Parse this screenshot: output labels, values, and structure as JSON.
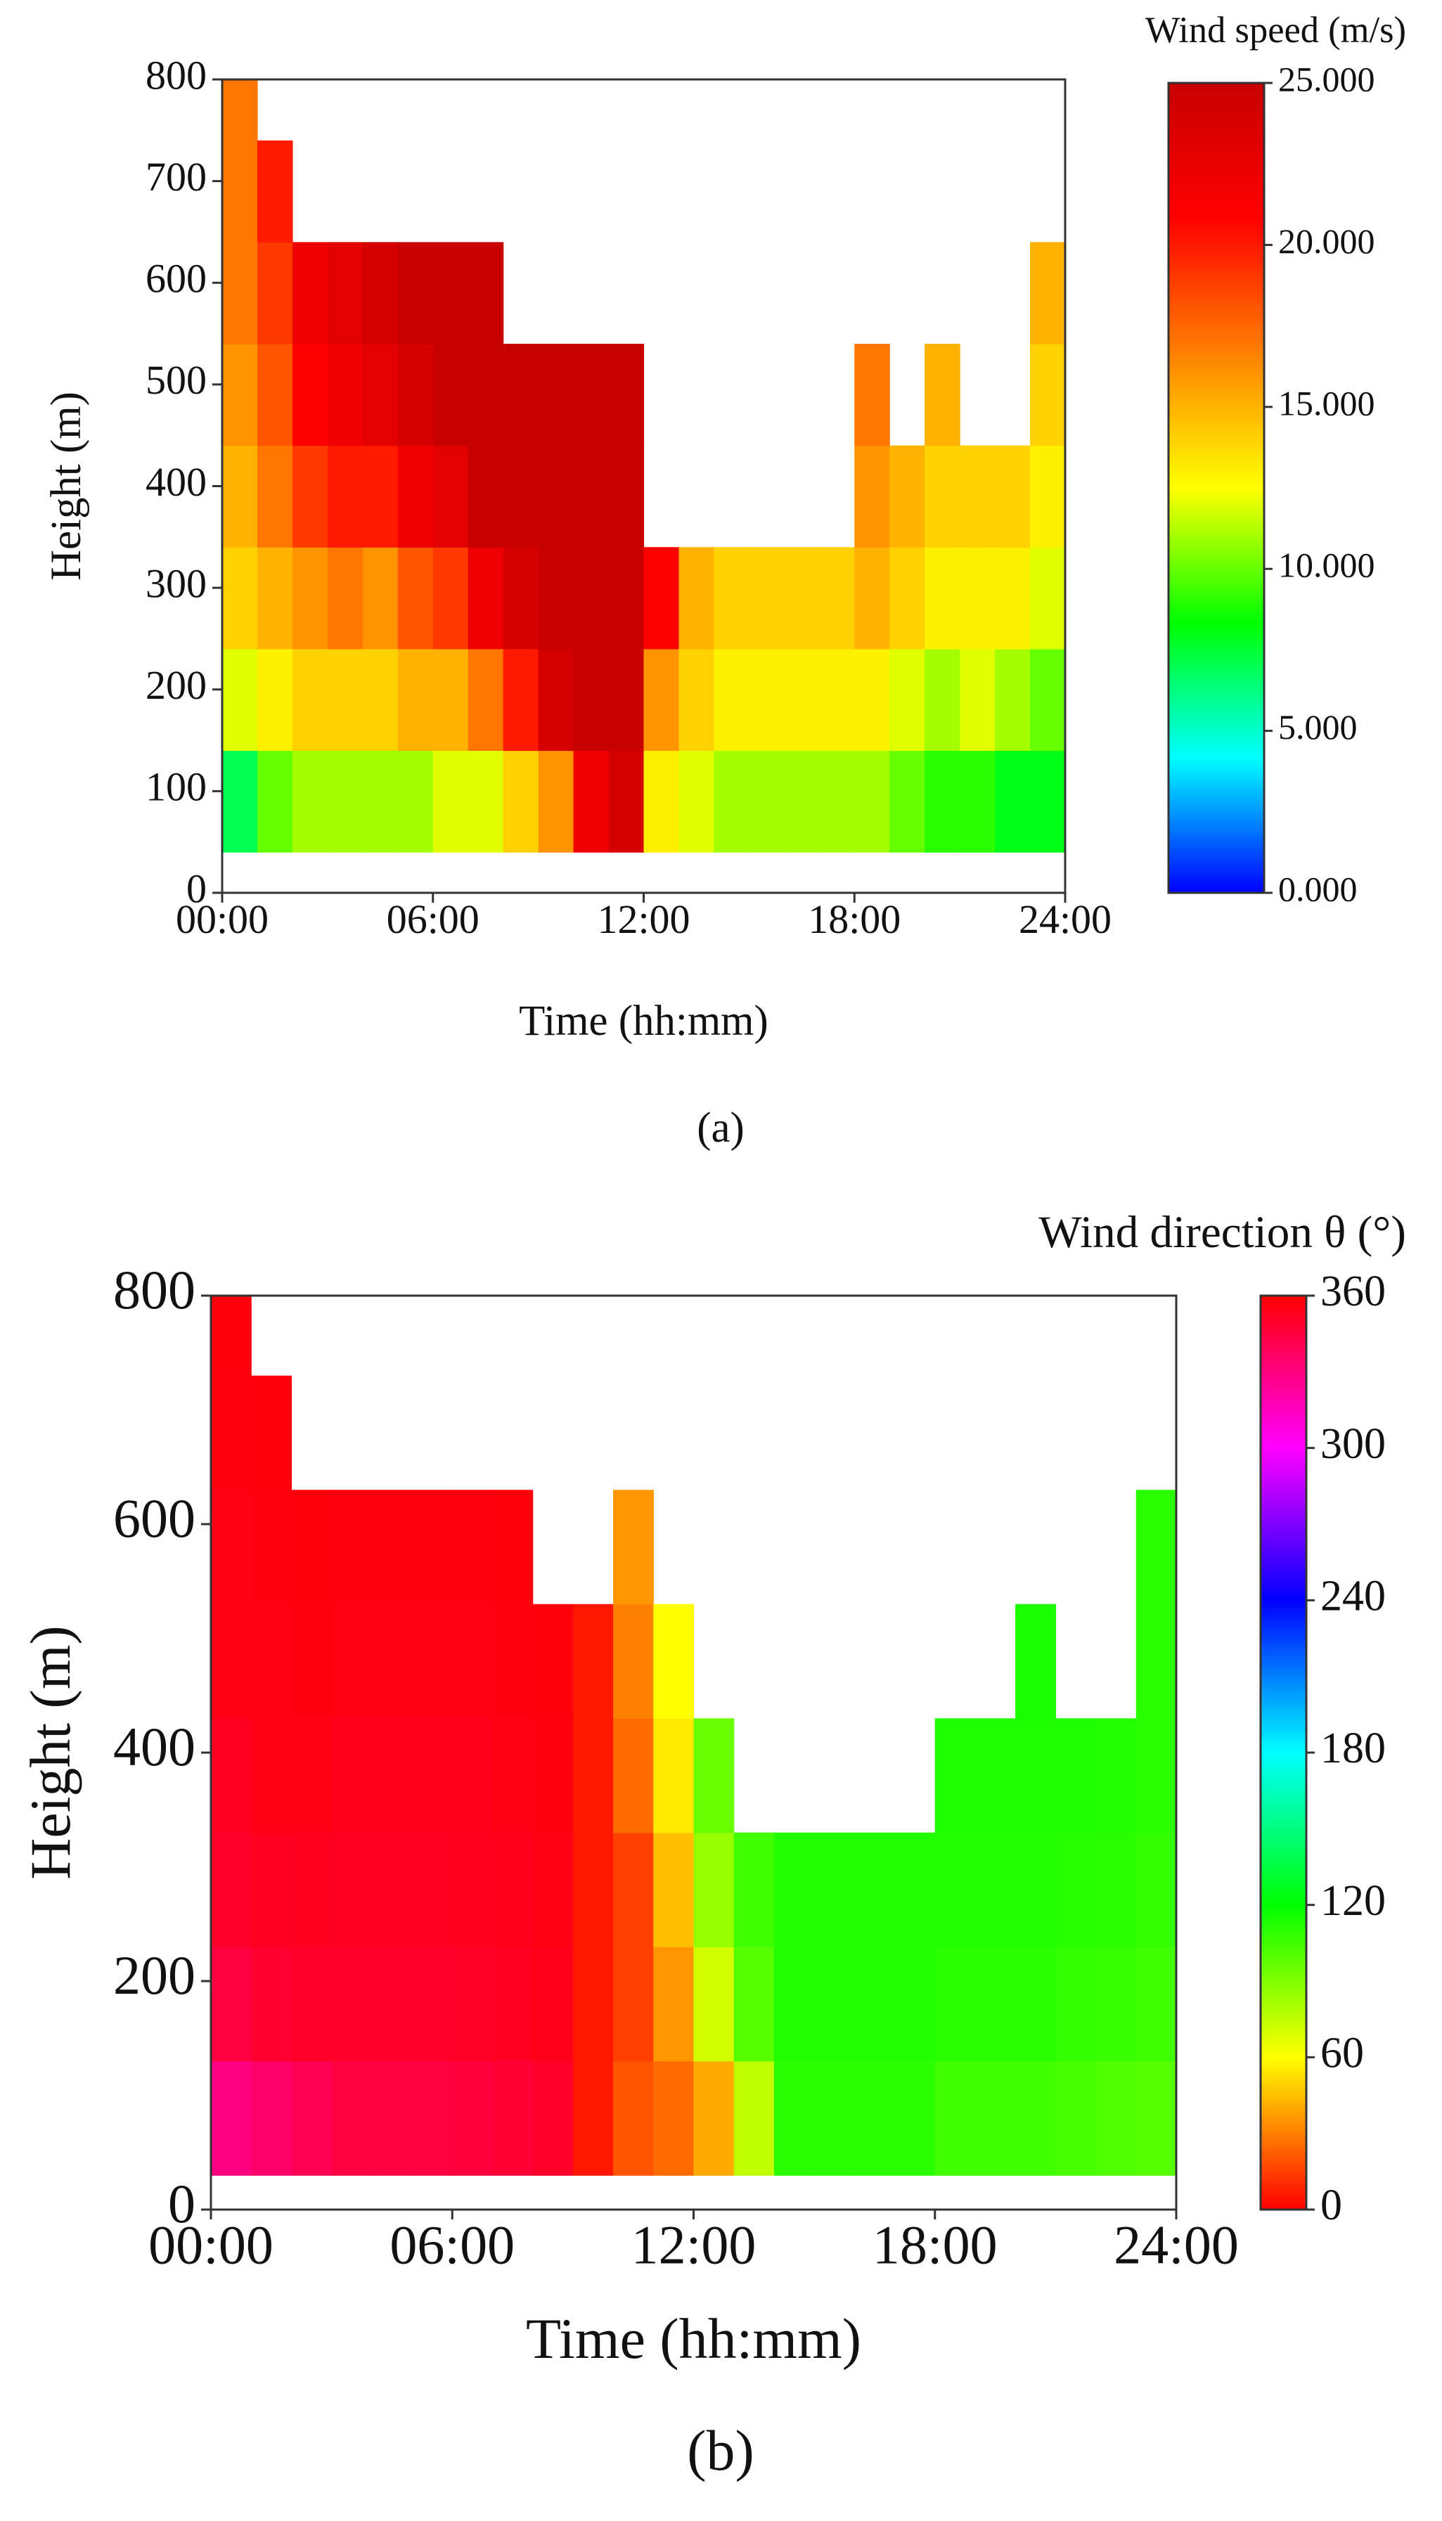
{
  "chart_data": [
    {
      "type": "heatmap",
      "caption": "(a)",
      "xlabel": "Time (hh:mm)",
      "ylabel": "Height (m)",
      "xbins": [
        0,
        1,
        2,
        3,
        4,
        5,
        6,
        7,
        8,
        9,
        10,
        11,
        12,
        13,
        14,
        15,
        16,
        17,
        18,
        19,
        20,
        21,
        22,
        23,
        24
      ],
      "ybins": [
        40,
        140,
        240,
        340,
        440,
        540,
        640,
        740,
        800
      ],
      "values": [
        [
          7,
          12,
          14,
          15,
          16,
          17,
          17,
          17
        ],
        [
          10,
          13,
          15,
          17,
          18,
          19,
          20,
          null
        ],
        [
          11,
          14,
          16,
          19,
          21,
          22,
          null,
          null
        ],
        [
          11,
          14,
          17,
          20,
          22,
          23,
          null,
          null
        ],
        [
          11,
          14,
          16,
          20,
          23,
          24,
          null,
          null
        ],
        [
          11,
          15,
          18,
          22,
          24,
          25,
          null,
          null
        ],
        [
          12,
          15,
          19,
          23,
          25,
          25,
          null,
          null
        ],
        [
          12,
          17,
          22,
          25,
          25,
          25,
          null,
          null
        ],
        [
          14,
          20,
          24,
          25,
          25,
          null,
          null,
          null
        ],
        [
          16,
          24,
          25,
          25,
          25,
          null,
          null,
          null
        ],
        [
          22,
          25,
          25,
          25,
          25,
          null,
          null,
          null
        ],
        [
          24,
          25,
          25,
          25,
          25,
          null,
          null,
          null
        ],
        [
          13,
          16,
          21,
          null,
          null,
          null,
          null,
          null
        ],
        [
          12,
          14,
          15,
          null,
          null,
          null,
          null,
          null
        ],
        [
          11,
          13,
          14,
          null,
          null,
          null,
          null,
          null
        ],
        [
          11,
          13,
          14,
          null,
          null,
          null,
          null,
          null
        ],
        [
          11,
          13,
          14,
          null,
          null,
          null,
          null,
          null
        ],
        [
          11,
          13,
          14,
          null,
          null,
          null,
          null,
          null
        ],
        [
          11,
          13,
          15,
          16,
          17,
          null,
          null,
          null
        ],
        [
          10,
          12,
          14,
          15,
          null,
          null,
          null,
          null
        ],
        [
          9,
          11,
          13,
          14,
          15,
          null,
          null,
          null
        ],
        [
          9,
          12,
          13,
          14,
          null,
          null,
          null,
          null
        ],
        [
          8,
          11,
          13,
          14,
          null,
          null,
          null,
          null
        ],
        [
          8,
          10,
          12,
          13,
          14,
          15,
          null,
          null
        ]
      ],
      "xlim": [
        0,
        24
      ],
      "xticks": [
        {
          "value": 0,
          "label": "00:00"
        },
        {
          "value": 6,
          "label": "06:00"
        },
        {
          "value": 12,
          "label": "12:00"
        },
        {
          "value": 18,
          "label": "18:00"
        },
        {
          "value": 24,
          "label": "24:00"
        }
      ],
      "ylim": [
        0,
        800
      ],
      "yticks": [
        0,
        100,
        200,
        300,
        400,
        500,
        600,
        700,
        800
      ],
      "colorbar": {
        "label": "Wind speed (m/s)",
        "lim": [
          0,
          25
        ],
        "colors": [
          "#0000ff",
          "#00ffff",
          "#00ff00",
          "#ffff00",
          "#ff8000",
          "#ff0000",
          "#c80000"
        ],
        "ticks": [
          {
            "value": 0,
            "label": "0.000"
          },
          {
            "value": 5,
            "label": "5.000"
          },
          {
            "value": 10,
            "label": "10.000"
          },
          {
            "value": 15,
            "label": "15.000"
          },
          {
            "value": 20,
            "label": "20.000"
          },
          {
            "value": 25,
            "label": "25.000"
          }
        ]
      }
    },
    {
      "type": "heatmap",
      "caption": "(b)",
      "xlabel": "Time (hh:mm)",
      "ylabel": "Height (m)",
      "xbins": [
        0,
        1,
        2,
        3,
        4,
        5,
        6,
        7,
        8,
        9,
        10,
        11,
        12,
        13,
        14,
        15,
        16,
        17,
        18,
        19,
        20,
        21,
        22,
        23,
        24
      ],
      "ybins": [
        30,
        130,
        230,
        330,
        430,
        530,
        630,
        730,
        800
      ],
      "values": [
        [
          330,
          345,
          350,
          352,
          355,
          355,
          356,
          357
        ],
        [
          335,
          348,
          352,
          355,
          355,
          356,
          357,
          null
        ],
        [
          340,
          350,
          353,
          355,
          356,
          357,
          null,
          null
        ],
        [
          345,
          350,
          352,
          354,
          355,
          356,
          null,
          null
        ],
        [
          345,
          350,
          352,
          354,
          355,
          356,
          null,
          null
        ],
        [
          345,
          350,
          352,
          354,
          355,
          356,
          null,
          null
        ],
        [
          346,
          351,
          353,
          354,
          355,
          356,
          null,
          null
        ],
        [
          347,
          352,
          354,
          355,
          356,
          357,
          null,
          null
        ],
        [
          350,
          354,
          355,
          356,
          357,
          null,
          null,
          null
        ],
        [
          5,
          5,
          5,
          5,
          5,
          null,
          null,
          null
        ],
        [
          20,
          15,
          15,
          25,
          30,
          35,
          null,
          null
        ],
        [
          25,
          35,
          45,
          55,
          60,
          null,
          null,
          null
        ],
        [
          40,
          70,
          85,
          95,
          null,
          null,
          null,
          null
        ],
        [
          75,
          100,
          105,
          null,
          null,
          null,
          null,
          null
        ],
        [
          110,
          112,
          112,
          null,
          null,
          null,
          null,
          null
        ],
        [
          110,
          112,
          112,
          null,
          null,
          null,
          null,
          null
        ],
        [
          110,
          112,
          112,
          null,
          null,
          null,
          null,
          null
        ],
        [
          110,
          112,
          112,
          null,
          null,
          null,
          null,
          null
        ],
        [
          105,
          110,
          112,
          113,
          null,
          null,
          null,
          null
        ],
        [
          105,
          110,
          112,
          113,
          null,
          null,
          null,
          null
        ],
        [
          105,
          110,
          112,
          113,
          114,
          null,
          null,
          null
        ],
        [
          103,
          108,
          111,
          113,
          null,
          null,
          null,
          null
        ],
        [
          102,
          107,
          110,
          112,
          null,
          null,
          null,
          null
        ],
        [
          100,
          105,
          108,
          110,
          110,
          110,
          null,
          null
        ]
      ],
      "xlim": [
        0,
        24
      ],
      "xticks": [
        {
          "value": 0,
          "label": "00:00"
        },
        {
          "value": 6,
          "label": "06:00"
        },
        {
          "value": 12,
          "label": "12:00"
        },
        {
          "value": 18,
          "label": "18:00"
        },
        {
          "value": 24,
          "label": "24:00"
        }
      ],
      "ylim": [
        0,
        800
      ],
      "yticks": [
        0,
        200,
        400,
        600,
        800
      ],
      "colorbar": {
        "label": "Wind direction θ (°)",
        "lim": [
          0,
          360
        ],
        "colors": [
          "#ff0000",
          "#ffff00",
          "#00ff00",
          "#00ffff",
          "#0000ff",
          "#ff00ff",
          "#ff0000"
        ],
        "ticks": [
          0,
          60,
          120,
          180,
          240,
          300,
          360
        ]
      }
    }
  ]
}
